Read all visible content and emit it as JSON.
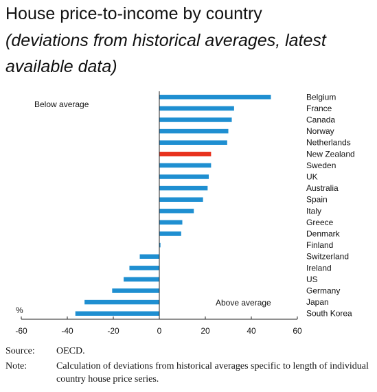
{
  "title": "House price-to-income by country",
  "subtitle": "(deviations from historical averages, latest available data)",
  "chart_data": {
    "type": "bar",
    "orientation": "horizontal",
    "categories": [
      "Belgium",
      "France",
      "Canada",
      "Norway",
      "Netherlands",
      "New Zealand",
      "Sweden",
      "UK",
      "Australia",
      "Spain",
      "Italy",
      "Greece",
      "Denmark",
      "Finland",
      "Switzerland",
      "Ireland",
      "US",
      "Germany",
      "Japan",
      "South Korea"
    ],
    "values": [
      48.5,
      32.5,
      31.5,
      30,
      29.5,
      22.5,
      22.5,
      21.5,
      21,
      19,
      15,
      10,
      9.5,
      0.5,
      -8.5,
      -13,
      -15.5,
      -20.5,
      -32.5,
      -36.5
    ],
    "highlight": "New Zealand",
    "bar_color": "#1f8fd1",
    "highlight_color": "#e8321e",
    "xlim": [
      -60,
      60
    ],
    "xticks": [
      -60,
      -40,
      -20,
      0,
      20,
      40,
      60
    ],
    "unit_label": "%",
    "annotations": [
      "Below average",
      "Above average"
    ],
    "grid": false,
    "legend": "none"
  },
  "footer": {
    "source_label": "Source:",
    "source_text": "OECD.",
    "note_label": "Note:",
    "note_text": "Calculation of deviations from historical averages specific to length of individual country house price series."
  }
}
